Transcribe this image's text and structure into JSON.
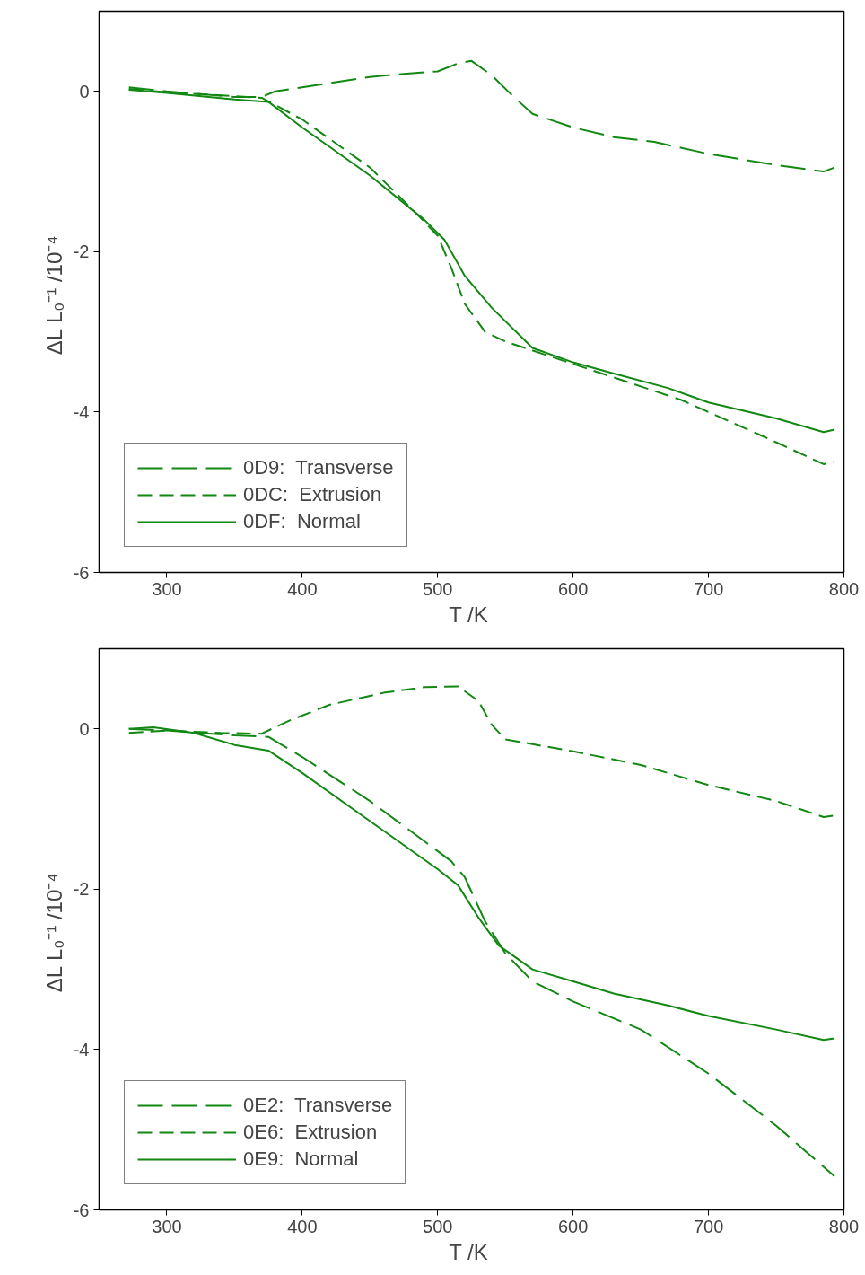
{
  "chart_data": [
    {
      "type": "line",
      "xlabel": "T  /K",
      "ylabel": "ΔL L₀⁻¹  /10⁻⁴",
      "xlim": [
        250,
        800
      ],
      "ylim": [
        -6,
        1
      ],
      "xticks": [
        300,
        400,
        500,
        600,
        700,
        800
      ],
      "yticks": [
        -6,
        -4,
        -2,
        0
      ],
      "grid": false,
      "legend": "bottom left",
      "series": [
        {
          "name": "0D9:  Transverse",
          "color": "#118811",
          "line_style": "longdash",
          "x": [
            272,
            300,
            350,
            370,
            380,
            400,
            450,
            475,
            500,
            515,
            525,
            540,
            555,
            570,
            600,
            630,
            660,
            700,
            750,
            785,
            793
          ],
          "values": [
            0.05,
            0.0,
            -0.07,
            -0.07,
            0.0,
            0.05,
            0.18,
            0.22,
            0.25,
            0.35,
            0.38,
            0.2,
            -0.05,
            -0.28,
            -0.45,
            -0.57,
            -0.63,
            -0.78,
            -0.92,
            -1.0,
            -0.95
          ]
        },
        {
          "name": "0DC:  Extrusion",
          "color": "#118811",
          "line_style": "dashed",
          "x": [
            272,
            300,
            350,
            370,
            400,
            450,
            480,
            500,
            510,
            520,
            535,
            550,
            600,
            650,
            680,
            700,
            740,
            785,
            793
          ],
          "values": [
            0.03,
            -0.01,
            -0.06,
            -0.08,
            -0.35,
            -0.95,
            -1.45,
            -1.8,
            -2.2,
            -2.65,
            -3.0,
            -3.12,
            -3.4,
            -3.68,
            -3.85,
            -4.0,
            -4.3,
            -4.65,
            -4.62
          ]
        },
        {
          "name": "0DF:  Normal",
          "color": "#118811",
          "line_style": "solid",
          "x": [
            272,
            300,
            350,
            375,
            400,
            450,
            490,
            505,
            520,
            540,
            570,
            600,
            630,
            670,
            700,
            750,
            785,
            793
          ],
          "values": [
            0.02,
            -0.02,
            -0.1,
            -0.13,
            -0.45,
            -1.05,
            -1.6,
            -1.85,
            -2.3,
            -2.7,
            -3.2,
            -3.38,
            -3.52,
            -3.7,
            -3.88,
            -4.08,
            -4.25,
            -4.22
          ]
        }
      ]
    },
    {
      "type": "line",
      "xlabel": "T  /K",
      "ylabel": "ΔL L₀⁻¹  /10⁻⁴",
      "xlim": [
        250,
        800
      ],
      "ylim": [
        -6,
        1
      ],
      "xticks": [
        300,
        400,
        500,
        600,
        700,
        800
      ],
      "yticks": [
        -6,
        -4,
        -2,
        0
      ],
      "grid": false,
      "legend": "bottom left",
      "series": [
        {
          "name": "0E2:  Transverse",
          "color": "#118811",
          "line_style": "longdash",
          "x": [
            272,
            300,
            350,
            375,
            400,
            450,
            490,
            510,
            520,
            535,
            550,
            570,
            600,
            650,
            700,
            750,
            793
          ],
          "values": [
            0.0,
            -0.02,
            -0.08,
            -0.1,
            -0.35,
            -0.9,
            -1.4,
            -1.65,
            -1.85,
            -2.4,
            -2.8,
            -3.15,
            -3.4,
            -3.75,
            -4.3,
            -4.95,
            -5.58
          ]
        },
        {
          "name": "0E6:  Extrusion",
          "color": "#118811",
          "line_style": "dashed",
          "x": [
            272,
            300,
            340,
            370,
            390,
            420,
            460,
            490,
            515,
            530,
            540,
            550,
            600,
            650,
            670,
            700,
            750,
            785,
            793
          ],
          "values": [
            -0.05,
            -0.02,
            -0.05,
            -0.06,
            0.1,
            0.3,
            0.45,
            0.52,
            0.53,
            0.35,
            0.05,
            -0.13,
            -0.28,
            -0.45,
            -0.55,
            -0.7,
            -0.9,
            -1.1,
            -1.08
          ]
        },
        {
          "name": "0E9:  Normal",
          "color": "#118811",
          "line_style": "solid",
          "x": [
            272,
            290,
            320,
            350,
            375,
            400,
            450,
            500,
            515,
            530,
            545,
            570,
            600,
            630,
            670,
            700,
            750,
            785,
            793
          ],
          "values": [
            0.0,
            0.02,
            -0.05,
            -0.2,
            -0.27,
            -0.55,
            -1.15,
            -1.75,
            -1.95,
            -2.35,
            -2.7,
            -3.0,
            -3.15,
            -3.3,
            -3.45,
            -3.58,
            -3.75,
            -3.88,
            -3.86
          ]
        }
      ]
    }
  ]
}
